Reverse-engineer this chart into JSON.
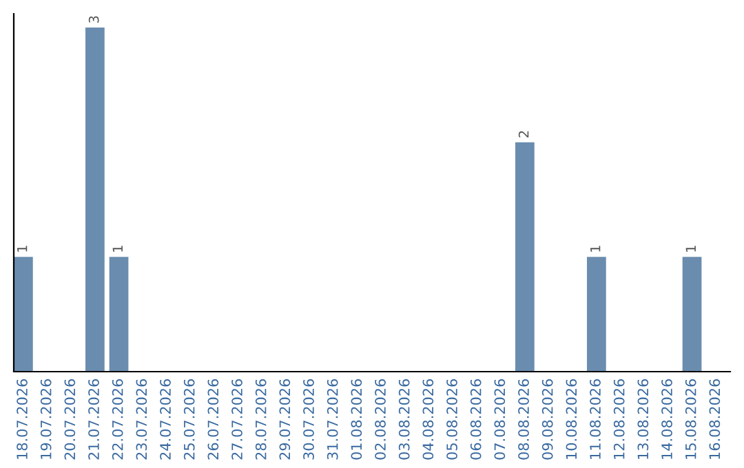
{
  "chart_data": {
    "type": "bar",
    "categories": [
      "18.07.2026",
      "19.07.2026",
      "20.07.2026",
      "21.07.2026",
      "22.07.2026",
      "23.07.2026",
      "24.07.2026",
      "25.07.2026",
      "26.07.2026",
      "27.07.2026",
      "28.07.2026",
      "29.07.2026",
      "30.07.2026",
      "31.07.2026",
      "01.08.2026",
      "02.08.2026",
      "03.08.2026",
      "04.08.2026",
      "05.08.2026",
      "06.08.2026",
      "07.08.2026",
      "08.08.2026",
      "09.08.2026",
      "10.08.2026",
      "11.08.2026",
      "12.08.2026",
      "13.08.2026",
      "14.08.2026",
      "15.08.2026",
      "16.08.2026"
    ],
    "values": [
      1,
      0,
      0,
      3,
      1,
      0,
      0,
      0,
      0,
      0,
      0,
      0,
      0,
      0,
      0,
      0,
      0,
      0,
      0,
      0,
      0,
      2,
      0,
      0,
      1,
      0,
      0,
      0,
      1,
      0
    ],
    "value_labels": [
      "1",
      null,
      null,
      "3",
      "1",
      null,
      null,
      null,
      null,
      null,
      null,
      null,
      null,
      null,
      null,
      null,
      null,
      null,
      null,
      null,
      null,
      "2",
      null,
      null,
      "1",
      null,
      null,
      null,
      "1",
      null
    ],
    "color": "#6a8caf",
    "ylim": [
      0,
      3.12
    ],
    "tick_labels": "x",
    "grid": false
  }
}
